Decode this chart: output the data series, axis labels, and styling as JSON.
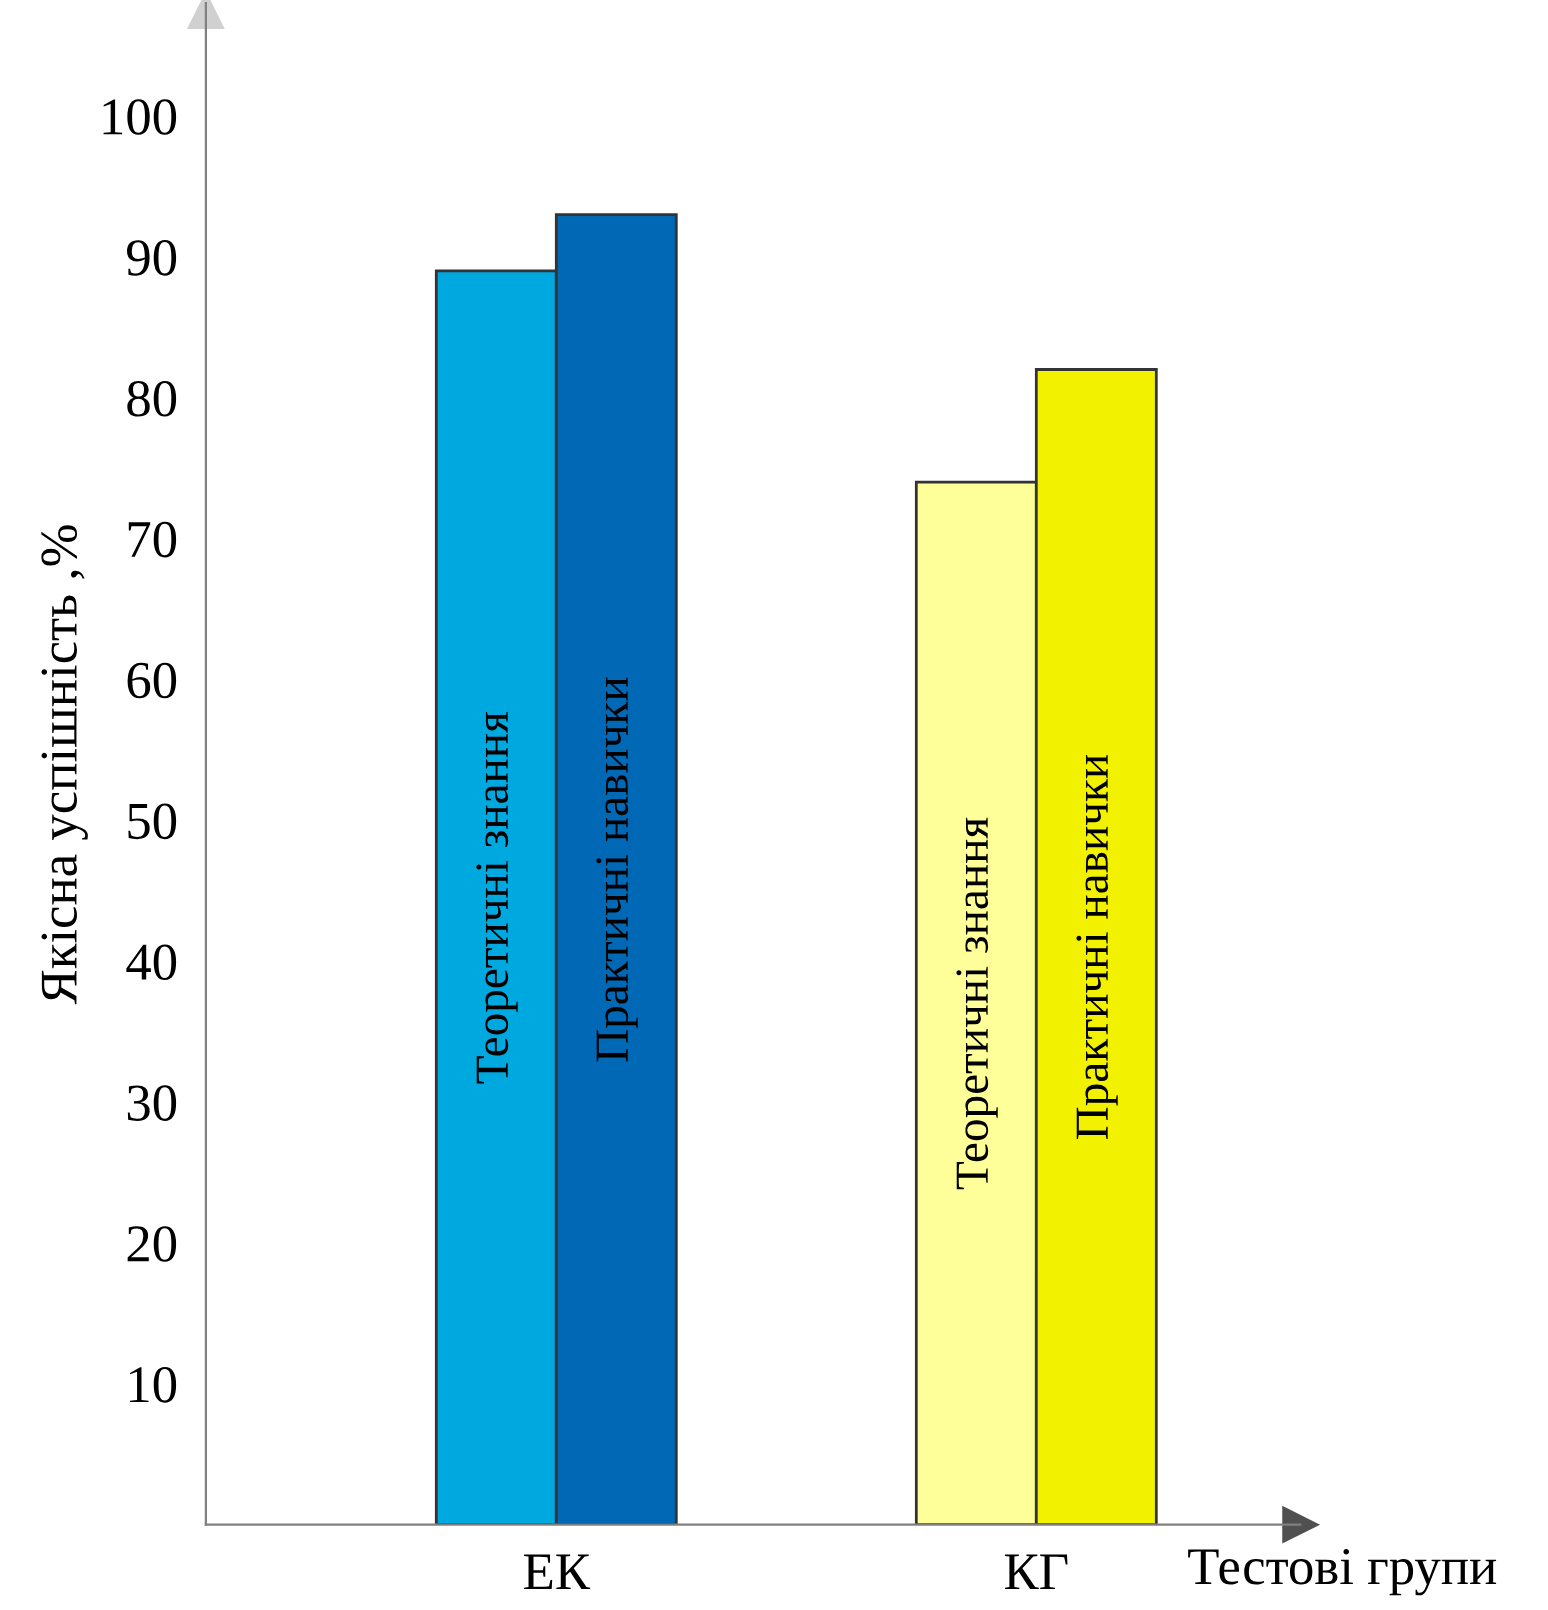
{
  "chart_data": {
    "type": "bar",
    "xlabel": "Тестові групи",
    "ylabel": "Якісна успішність ,%",
    "categories": [
      "ЕК",
      "КГ"
    ],
    "series": [
      {
        "name": "Теоретичні знання",
        "colors": [
          "#00a8e0",
          "#ffff99"
        ],
        "values": [
          89,
          74
        ]
      },
      {
        "name": "Практичні навички",
        "colors": [
          "#0068b4",
          "#f2f200"
        ],
        "values": [
          93,
          82
        ]
      }
    ],
    "ylim": [
      0,
      108
    ],
    "yticks": [
      10,
      20,
      30,
      40,
      50,
      60,
      70,
      80,
      90,
      100
    ],
    "grid": false,
    "legend": false
  }
}
